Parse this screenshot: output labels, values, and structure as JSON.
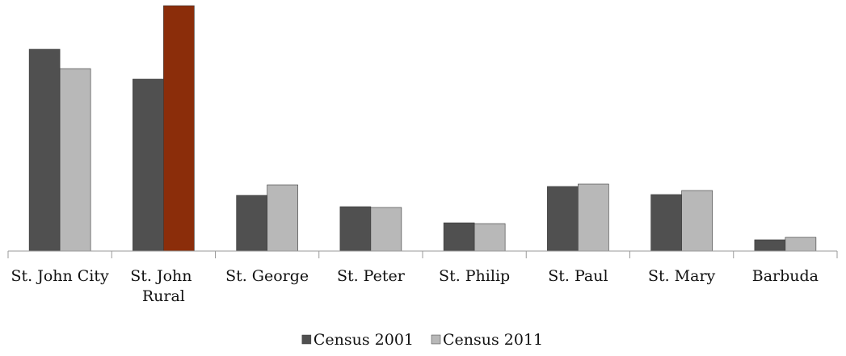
{
  "chart_data": {
    "type": "bar",
    "categories": [
      "St. John City",
      "St. John Rural",
      "St. George",
      "St. Peter",
      "St. Philip",
      "St. Paul",
      "St. Mary",
      "Barbuda"
    ],
    "series": [
      {
        "name": "Census 2001",
        "color": "#505050",
        "values": [
          250,
          213,
          69,
          55,
          35,
          80,
          70,
          14
        ]
      },
      {
        "name": "Census 2011",
        "color": "#b8b8b8",
        "colors": [
          "#b8b8b8",
          "#8b2d0a",
          "#b8b8b8",
          "#b8b8b8",
          "#b8b8b8",
          "#b8b8b8",
          "#b8b8b8",
          "#b8b8b8"
        ],
        "values": [
          226,
          304,
          82,
          54,
          34,
          83,
          75,
          17
        ]
      }
    ],
    "ylim": [
      0,
      304
    ],
    "legend": "bottom"
  }
}
